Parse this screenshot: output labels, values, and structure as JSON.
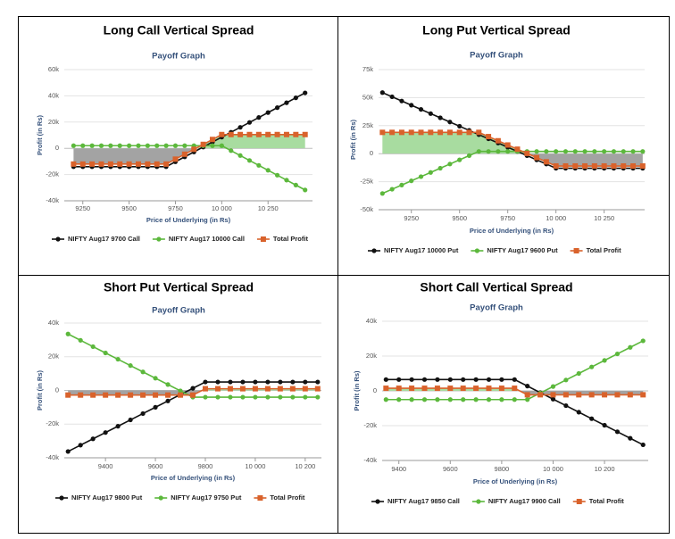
{
  "chart_data": [
    {
      "type": "line",
      "title": "Long Call Vertical Spread",
      "subtitle": "Payoff Graph",
      "x_label": "Price of Underlying (in Rs)",
      "y_label": "Profit (in Rs)",
      "x": [
        9200,
        9250,
        9300,
        9350,
        9400,
        9450,
        9500,
        9550,
        9600,
        9650,
        9700,
        9750,
        9800,
        9850,
        9900,
        9950,
        10000,
        10050,
        10100,
        10150,
        10200,
        10250,
        10300,
        10350,
        10400,
        10450
      ],
      "xlim": [
        9150,
        10490
      ],
      "xticks": [
        9250,
        9500,
        9750,
        {
          "value": 10000,
          "label": "10 000"
        },
        {
          "value": 10250,
          "label": "10 250"
        }
      ],
      "ylim": [
        -40000,
        60000
      ],
      "yticks": [
        {
          "value": -40000,
          "label": "-40k"
        },
        {
          "value": -20000,
          "label": "-20k"
        },
        0,
        {
          "value": 20000,
          "label": "20k"
        },
        {
          "value": 40000,
          "label": "40k"
        },
        {
          "value": 60000,
          "label": "60k"
        }
      ],
      "grid": true,
      "legend": "bottom",
      "shade": {
        "above": "#a8dca0",
        "below": "#a3a3a3"
      },
      "series": [
        {
          "name": "NIFTY Aug17 9700 Call",
          "color": "#111111",
          "marker": "circle",
          "values": [
            -14000,
            -14000,
            -14000,
            -14000,
            -14000,
            -14000,
            -14000,
            -14000,
            -14000,
            -14000,
            -14000,
            -10250,
            -6500,
            -2750,
            1000,
            4750,
            8500,
            12250,
            16000,
            19750,
            23500,
            27250,
            31000,
            34750,
            38500,
            42250
          ]
        },
        {
          "name": "NIFTY Aug17 10000 Call",
          "color": "#5cb83c",
          "marker": "circle",
          "values": [
            2000,
            2000,
            2000,
            2000,
            2000,
            2000,
            2000,
            2000,
            2000,
            2000,
            2000,
            2000,
            2000,
            2000,
            2000,
            2000,
            2000,
            -1750,
            -5500,
            -9250,
            -13000,
            -16750,
            -20500,
            -24250,
            -28000,
            -31750
          ]
        },
        {
          "name": "Total Profit",
          "color": "#d9622b",
          "marker": "square",
          "values": [
            -12000,
            -12000,
            -12000,
            -12000,
            -12000,
            -12000,
            -12000,
            -12000,
            -12000,
            -12000,
            -12000,
            -8250,
            -4500,
            -750,
            3000,
            6750,
            10500,
            10500,
            10500,
            10500,
            10500,
            10500,
            10500,
            10500,
            10500,
            10500
          ]
        }
      ]
    },
    {
      "type": "line",
      "title": "Long Put Vertical Spread",
      "subtitle": "Payoff Graph",
      "x_label": "Price of Underlying (in Rs)",
      "y_label": "Profit (in Rs)",
      "x": [
        9100,
        9150,
        9200,
        9250,
        9300,
        9350,
        9400,
        9450,
        9500,
        9550,
        9600,
        9650,
        9700,
        9750,
        9800,
        9850,
        9900,
        9950,
        10000,
        10050,
        10100,
        10150,
        10200,
        10250,
        10300,
        10350,
        10400,
        10450
      ],
      "xlim": [
        9080,
        10460
      ],
      "xticks": [
        9250,
        9500,
        9750,
        {
          "value": 10000,
          "label": "10 000"
        },
        {
          "value": 10250,
          "label": "10 250"
        }
      ],
      "ylim": [
        -50000,
        75000
      ],
      "yticks": [
        {
          "value": -50000,
          "label": "-50k"
        },
        {
          "value": -25000,
          "label": "-25k"
        },
        0,
        {
          "value": 25000,
          "label": "25k"
        },
        {
          "value": 50000,
          "label": "50k"
        },
        {
          "value": 75000,
          "label": "75k"
        }
      ],
      "grid": true,
      "legend": "bottom",
      "shade": {
        "above": "#a8dca0",
        "below": "#a3a3a3"
      },
      "series": [
        {
          "name": "NIFTY Aug17 10000 Put",
          "color": "#111111",
          "marker": "circle",
          "values": [
            54500,
            50750,
            47000,
            43250,
            39500,
            35750,
            32000,
            28250,
            24500,
            20750,
            17000,
            13250,
            9500,
            5750,
            2000,
            -1750,
            -5500,
            -9250,
            -13000,
            -13000,
            -13000,
            -13000,
            -13000,
            -13000,
            -13000,
            -13000,
            -13000,
            -13000
          ]
        },
        {
          "name": "NIFTY Aug17 9600 Put",
          "color": "#5cb83c",
          "marker": "circle",
          "values": [
            -35500,
            -31750,
            -28000,
            -24250,
            -20500,
            -16750,
            -13000,
            -9250,
            -5500,
            -1750,
            2000,
            2000,
            2000,
            2000,
            2000,
            2000,
            2000,
            2000,
            2000,
            2000,
            2000,
            2000,
            2000,
            2000,
            2000,
            2000,
            2000,
            2000
          ]
        },
        {
          "name": "Total Profit",
          "color": "#d9622b",
          "marker": "square",
          "values": [
            19000,
            19000,
            19000,
            19000,
            19000,
            19000,
            19000,
            19000,
            19000,
            19000,
            19000,
            15250,
            11500,
            7750,
            4000,
            250,
            -3500,
            -7250,
            -11000,
            -11000,
            -11000,
            -11000,
            -11000,
            -11000,
            -11000,
            -11000,
            -11000,
            -11000
          ]
        }
      ]
    },
    {
      "type": "line",
      "title": "Short Put Vertical Spread",
      "subtitle": "Payoff Graph",
      "x_label": "Price of Underlying (in Rs)",
      "y_label": "Profit (in Rs)",
      "x": [
        9250,
        9300,
        9350,
        9400,
        9450,
        9500,
        9550,
        9600,
        9650,
        9700,
        9750,
        9800,
        9850,
        9900,
        9950,
        10000,
        10050,
        10100,
        10150,
        10200,
        10250
      ],
      "xlim": [
        9235,
        10265
      ],
      "xticks": [
        9400,
        9600,
        9800,
        {
          "value": 10000,
          "label": "10 000"
        },
        {
          "value": 10200,
          "label": "10 200"
        }
      ],
      "ylim": [
        -40000,
        40000
      ],
      "yticks": [
        {
          "value": -40000,
          "label": "-40k"
        },
        {
          "value": -20000,
          "label": "-20k"
        },
        0,
        {
          "value": 20000,
          "label": "20k"
        },
        {
          "value": 40000,
          "label": "40k"
        }
      ],
      "grid": true,
      "legend": "bottom",
      "shade": {
        "above": "#a8dca0",
        "below": "#a3a3a3"
      },
      "series": [
        {
          "name": "NIFTY Aug17 9800 Put",
          "color": "#111111",
          "marker": "circle",
          "values": [
            -36250,
            -32500,
            -28750,
            -25000,
            -21250,
            -17500,
            -13750,
            -10000,
            -6250,
            -2500,
            1250,
            5000,
            5000,
            5000,
            5000,
            5000,
            5000,
            5000,
            5000,
            5000,
            5000
          ]
        },
        {
          "name": "NIFTY Aug17 9750 Put",
          "color": "#5cb83c",
          "marker": "circle",
          "values": [
            33500,
            29750,
            26000,
            22250,
            18500,
            14750,
            11000,
            7250,
            3500,
            -250,
            -4000,
            -4000,
            -4000,
            -4000,
            -4000,
            -4000,
            -4000,
            -4000,
            -4000,
            -4000,
            -4000
          ]
        },
        {
          "name": "Total Profit",
          "color": "#d9622b",
          "marker": "square",
          "values": [
            -2750,
            -2750,
            -2750,
            -2750,
            -2750,
            -2750,
            -2750,
            -2750,
            -2750,
            -2750,
            -2750,
            1000,
            1000,
            1000,
            1000,
            1000,
            1000,
            1000,
            1000,
            1000,
            1000
          ]
        }
      ]
    },
    {
      "type": "line",
      "title": "Short Call Vertical Spread",
      "subtitle": "Payoff Graph",
      "x_label": "Price of Underlying (in Rs)",
      "y_label": "Profit (in Rs)",
      "x": [
        9350,
        9400,
        9450,
        9500,
        9550,
        9600,
        9650,
        9700,
        9750,
        9800,
        9850,
        9900,
        9950,
        10000,
        10050,
        10100,
        10150,
        10200,
        10250,
        10300,
        10350
      ],
      "xlim": [
        9335,
        10370
      ],
      "xticks": [
        9400,
        9600,
        9800,
        {
          "value": 10000,
          "label": "10 000"
        },
        {
          "value": 10200,
          "label": "10 200"
        }
      ],
      "ylim": [
        -40000,
        40000
      ],
      "yticks": [
        {
          "value": -40000,
          "label": "-40k"
        },
        {
          "value": -20000,
          "label": "-20k"
        },
        0,
        {
          "value": 20000,
          "label": "20k"
        },
        {
          "value": 40000,
          "label": "40k"
        }
      ],
      "grid": true,
      "legend": "bottom",
      "shade": {
        "above": "#a8dca0",
        "below": "#a3a3a3"
      },
      "series": [
        {
          "name": "NIFTY Aug17 9850 Call",
          "color": "#111111",
          "marker": "circle",
          "values": [
            6500,
            6500,
            6500,
            6500,
            6500,
            6500,
            6500,
            6500,
            6500,
            6500,
            6500,
            2750,
            -1000,
            -4750,
            -8500,
            -12250,
            -16000,
            -19750,
            -23500,
            -27250,
            -31000
          ]
        },
        {
          "name": "NIFTY Aug17 9900 Call",
          "color": "#5cb83c",
          "marker": "circle",
          "values": [
            -5000,
            -5000,
            -5000,
            -5000,
            -5000,
            -5000,
            -5000,
            -5000,
            -5000,
            -5000,
            -5000,
            -5000,
            -1250,
            2500,
            6250,
            10000,
            13750,
            17500,
            21250,
            25000,
            28750
          ]
        },
        {
          "name": "Total Profit",
          "color": "#d9622b",
          "marker": "square",
          "values": [
            1500,
            1500,
            1500,
            1500,
            1500,
            1500,
            1500,
            1500,
            1500,
            1500,
            1500,
            -2250,
            -2250,
            -2250,
            -2250,
            -2250,
            -2250,
            -2250,
            -2250,
            -2250,
            -2250
          ]
        }
      ]
    }
  ]
}
